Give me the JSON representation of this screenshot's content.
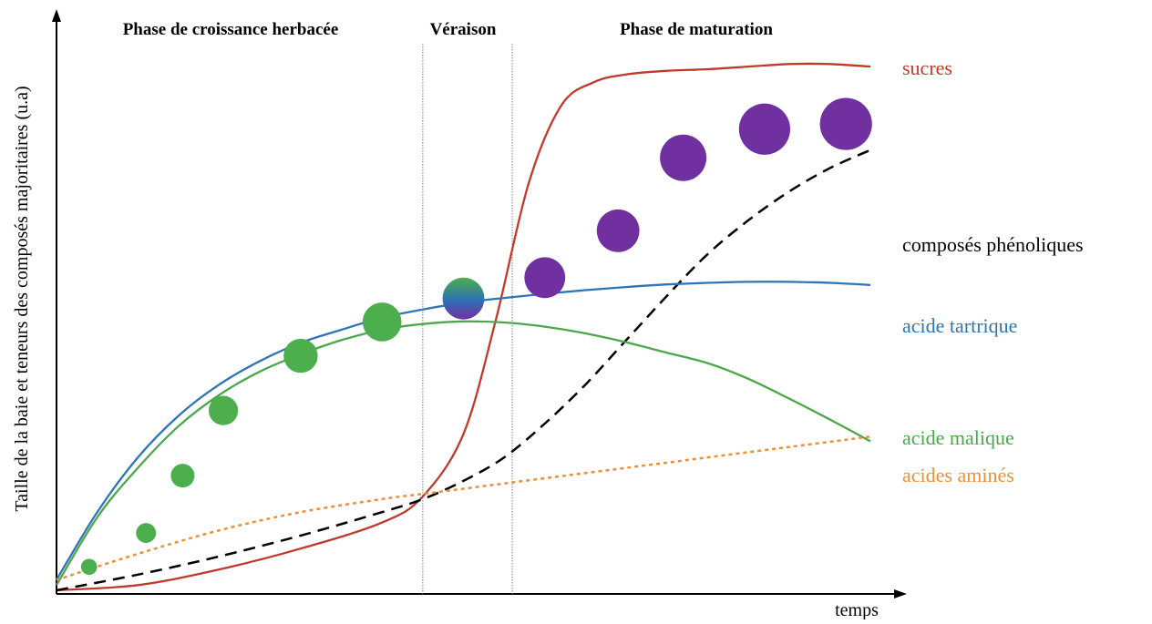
{
  "chart_data": {
    "type": "line",
    "title": "",
    "xlabel": "temps",
    "ylabel": "Taille de la baie et  teneurs des composés majoritaires (u.a)",
    "xlim": [
      0,
      100
    ],
    "ylim": [
      0,
      100
    ],
    "grid": false,
    "phases": [
      {
        "label": "Phase de croissance herbacée",
        "start": 0,
        "end": 45
      },
      {
        "label": "Véraison",
        "start": 45,
        "end": 56
      },
      {
        "label": "Phase de maturation",
        "start": 56,
        "end": 100
      }
    ],
    "phase_boundaries": [
      45,
      56
    ],
    "series": [
      {
        "name": "sucres",
        "color": "#c0392b",
        "style": "solid",
        "x": [
          0,
          10,
          20,
          30,
          40,
          45,
          50,
          54,
          58,
          62,
          66,
          70,
          75,
          80,
          85,
          90,
          95,
          100
        ],
        "y": [
          0,
          1,
          4,
          8,
          13,
          18,
          30,
          52,
          78,
          93,
          97.5,
          99,
          99.7,
          100,
          100.5,
          101,
          101,
          100.5
        ]
      },
      {
        "name": "composés phénoliques",
        "color": "#000000",
        "style": "dashed",
        "x": [
          0,
          10,
          20,
          30,
          40,
          45,
          50,
          55,
          60,
          65,
          70,
          75,
          80,
          85,
          90,
          95,
          100
        ],
        "y": [
          0,
          3,
          6.5,
          10.5,
          15,
          17.5,
          21,
          25.5,
          32,
          39.5,
          48,
          56.5,
          64.5,
          71,
          76.5,
          81,
          84.5
        ]
      },
      {
        "name": "acide tartrique",
        "color": "#2e75b6",
        "style": "solid",
        "x": [
          0,
          5,
          10,
          15,
          20,
          25,
          30,
          35,
          40,
          45,
          50,
          55,
          60,
          65,
          70,
          75,
          80,
          85,
          90,
          95,
          100
        ],
        "y": [
          2,
          15,
          25.5,
          33.5,
          39.5,
          44,
          47.5,
          50,
          52.3,
          53.9,
          55.2,
          56.1,
          56.9,
          57.6,
          58.2,
          58.7,
          59,
          59.2,
          59.2,
          59,
          58.6
        ]
      },
      {
        "name": "acide malique",
        "color": "#4aa84a",
        "style": "solid",
        "x": [
          0,
          5,
          10,
          15,
          20,
          25,
          30,
          35,
          40,
          45,
          50,
          55,
          60,
          65,
          70,
          75,
          80,
          85,
          90,
          95,
          100
        ],
        "y": [
          1,
          14,
          23.5,
          31.5,
          37.5,
          42,
          45.3,
          48,
          50,
          51.1,
          51.6,
          51.4,
          50.6,
          49.3,
          47.6,
          45.6,
          43.6,
          40.6,
          36.8,
          32.8,
          28.6
        ]
      },
      {
        "name": "acides aminés",
        "color": "#e8913a",
        "style": "dotted",
        "x": [
          0,
          10,
          20,
          30,
          40,
          45,
          50,
          60,
          70,
          80,
          90,
          100
        ],
        "y": [
          2,
          7,
          11.5,
          15,
          17.5,
          18.5,
          19.5,
          21.5,
          23.5,
          25.5,
          27.5,
          29.5
        ]
      }
    ],
    "berries": {
      "x": [
        4,
        11,
        15.5,
        20.5,
        30,
        40,
        50,
        60,
        69,
        77,
        87,
        97
      ],
      "y": [
        4.5,
        11,
        22,
        34.5,
        45,
        51.5,
        56,
        60,
        69,
        83,
        88.5,
        89.5
      ],
      "size": [
        1.7,
        2.1,
        2.5,
        3.1,
        3.6,
        4.1,
        4.4,
        4.3,
        4.5,
        4.9,
        5.4,
        5.5
      ],
      "color": [
        "green",
        "green",
        "green",
        "green",
        "green",
        "green",
        "gradient",
        "purple",
        "purple",
        "purple",
        "purple",
        "purple"
      ]
    },
    "colors": {
      "berry_green": "#4cae4c",
      "berry_purple": "#7030a0",
      "veraison_blue": "#2f6fb5",
      "boundary_line": "#7f7f7f"
    }
  }
}
